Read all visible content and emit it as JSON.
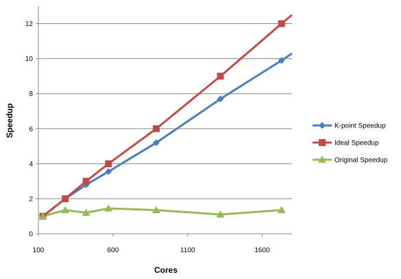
{
  "chart_data": {
    "type": "line",
    "xlabel": "Cores",
    "ylabel": "Speedup",
    "xlim": [
      100,
      1800
    ],
    "ylim": [
      0,
      13
    ],
    "xticks": [
      100,
      600,
      1100,
      1600
    ],
    "yticks": [
      0,
      2,
      4,
      6,
      8,
      10,
      12
    ],
    "grid": "horizontal",
    "legend_position": "right",
    "series": [
      {
        "name": "K-point Speedup",
        "color": "#4a7ebb",
        "marker": "diamond",
        "x": [
          130,
          280,
          420,
          570,
          890,
          1320,
          1730
        ],
        "y": [
          1.0,
          2.0,
          2.8,
          3.55,
          5.2,
          7.7,
          9.9
        ],
        "line_end": [
          1800,
          10.3
        ]
      },
      {
        "name": "Ideal Speedup",
        "color": "#be4b48",
        "marker": "square",
        "x": [
          130,
          280,
          420,
          570,
          890,
          1320,
          1730
        ],
        "y": [
          1.0,
          2.0,
          3.0,
          4.0,
          6.0,
          9.0,
          12.0
        ],
        "line_end": [
          1800,
          12.5
        ]
      },
      {
        "name": "Original Speedup",
        "color": "#98b954",
        "marker": "triangle",
        "x": [
          130,
          280,
          420,
          570,
          890,
          1320,
          1730
        ],
        "y": [
          1.0,
          1.35,
          1.2,
          1.45,
          1.35,
          1.1,
          1.35
        ]
      }
    ]
  }
}
